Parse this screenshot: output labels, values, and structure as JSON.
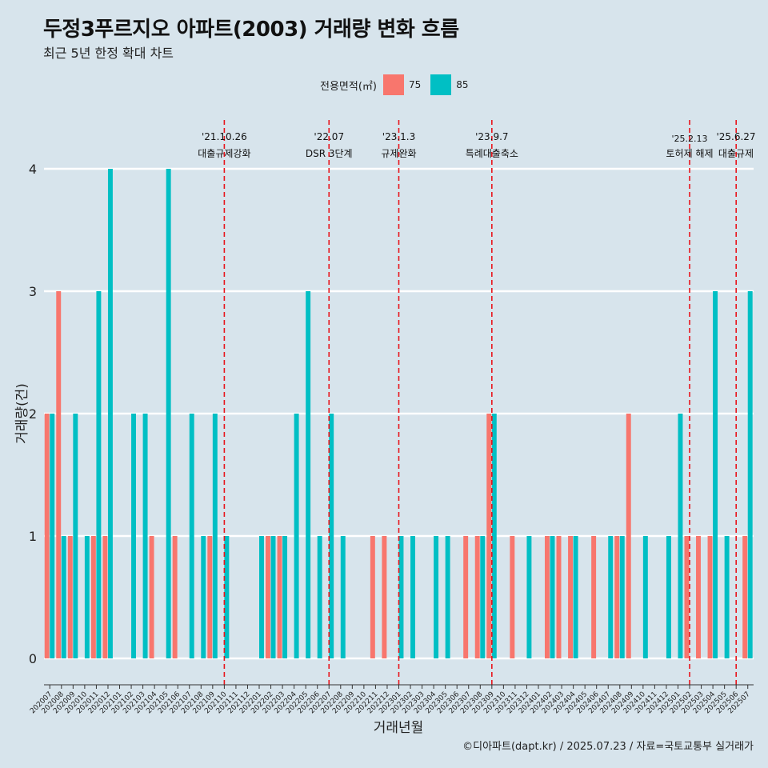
{
  "header": {
    "title": "두정3푸르지오 아파트(2003) 거래량 변화 흐름",
    "subtitle": "최근 5년 한정 확대 차트"
  },
  "legend": {
    "title": "전용면적(㎡)",
    "items": [
      {
        "label": "75",
        "color": "#f8766d"
      },
      {
        "label": "85",
        "color": "#00bfc4"
      }
    ]
  },
  "caption": "©디아파트(dapt.kr) / 2025.07.23 / 자료=국토교통부 실거래가",
  "chart_data": {
    "type": "bar",
    "xlabel": "거래년월",
    "ylabel": "거래량(건)",
    "ylim": [
      0,
      4
    ],
    "yticks": [
      0,
      1,
      2,
      3,
      4
    ],
    "grid": true,
    "categories": [
      "202007",
      "202008",
      "202009",
      "202010",
      "202011",
      "202012",
      "202101",
      "202102",
      "202103",
      "202104",
      "202105",
      "202106",
      "202107",
      "202108",
      "202109",
      "202110",
      "202111",
      "202112",
      "202201",
      "202202",
      "202203",
      "202204",
      "202205",
      "202206",
      "202207",
      "202208",
      "202209",
      "202210",
      "202211",
      "202212",
      "202301",
      "202302",
      "202303",
      "202304",
      "202305",
      "202306",
      "202307",
      "202308",
      "202309",
      "202310",
      "202311",
      "202312",
      "202401",
      "202402",
      "202403",
      "202404",
      "202405",
      "202406",
      "202407",
      "202408",
      "202409",
      "202410",
      "202411",
      "202412",
      "202501",
      "202502",
      "202503",
      "202504",
      "202505",
      "202506",
      "202507"
    ],
    "series": [
      {
        "name": "75",
        "color": "#f8766d",
        "values": [
          2,
          3,
          1,
          0,
          1,
          1,
          0,
          0,
          0,
          1,
          0,
          1,
          0,
          0,
          1,
          0,
          0,
          0,
          0,
          1,
          1,
          0,
          0,
          0,
          0,
          0,
          0,
          0,
          1,
          1,
          0,
          0,
          0,
          0,
          0,
          0,
          1,
          1,
          2,
          0,
          1,
          0,
          0,
          1,
          1,
          1,
          0,
          1,
          0,
          1,
          2,
          0,
          0,
          0,
          0,
          1,
          1,
          1,
          0,
          0,
          1
        ]
      },
      {
        "name": "85",
        "color": "#00bfc4",
        "values": [
          2,
          1,
          2,
          1,
          3,
          4,
          0,
          2,
          2,
          0,
          4,
          0,
          2,
          1,
          2,
          1,
          0,
          0,
          1,
          1,
          1,
          2,
          3,
          1,
          2,
          1,
          0,
          0,
          0,
          0,
          1,
          1,
          0,
          1,
          1,
          0,
          0,
          1,
          2,
          0,
          0,
          1,
          0,
          1,
          0,
          1,
          0,
          0,
          1,
          1,
          0,
          1,
          0,
          1,
          2,
          0,
          0,
          3,
          1,
          0,
          3
        ]
      }
    ],
    "annotations": [
      {
        "x": "202110",
        "date": "'21.10.26",
        "label": "대출규제강화"
      },
      {
        "x": "202207",
        "date": "'22.07",
        "label": "DSR 3단계"
      },
      {
        "x": "202301",
        "date": "'23.1.3",
        "label": "규제완화"
      },
      {
        "x": "202309",
        "date": "'23.9.7",
        "label": "특례대출축소"
      },
      {
        "x": "202502",
        "date": "'25.2.13",
        "label": "토허제 해제"
      },
      {
        "x": "202506",
        "date": "'25.6.27",
        "label": "대출규제"
      }
    ]
  }
}
